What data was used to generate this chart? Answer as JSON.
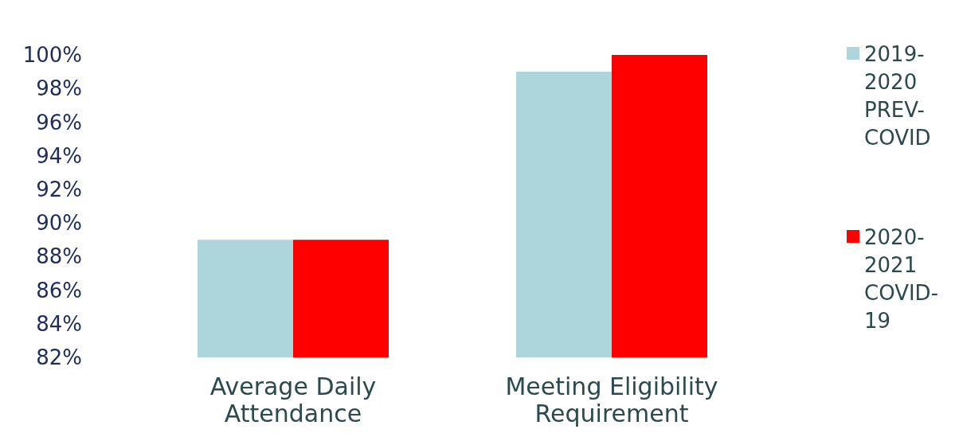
{
  "chart_data": {
    "type": "bar",
    "categories": [
      "Average Daily Attendance",
      "Meeting Eligibility Requirement"
    ],
    "series": [
      {
        "name": "2019-2020 PREV-COVID",
        "color": "#acd6db",
        "values": [
          89,
          99
        ]
      },
      {
        "name": "2020-2021 COVID-19",
        "color": "#ff0000",
        "values": [
          89,
          100
        ]
      }
    ],
    "ylim": [
      82,
      100
    ],
    "yticks": [
      {
        "value": 82,
        "label": "82%"
      },
      {
        "value": 84,
        "label": "84%"
      },
      {
        "value": 86,
        "label": "86%"
      },
      {
        "value": 88,
        "label": "88%"
      },
      {
        "value": 90,
        "label": "90%"
      },
      {
        "value": 92,
        "label": "92%"
      },
      {
        "value": 94,
        "label": "94%"
      },
      {
        "value": 96,
        "label": "96%"
      },
      {
        "value": 98,
        "label": "98%"
      },
      {
        "value": 100,
        "label": "100%"
      }
    ],
    "grid": false,
    "legend": "right"
  }
}
